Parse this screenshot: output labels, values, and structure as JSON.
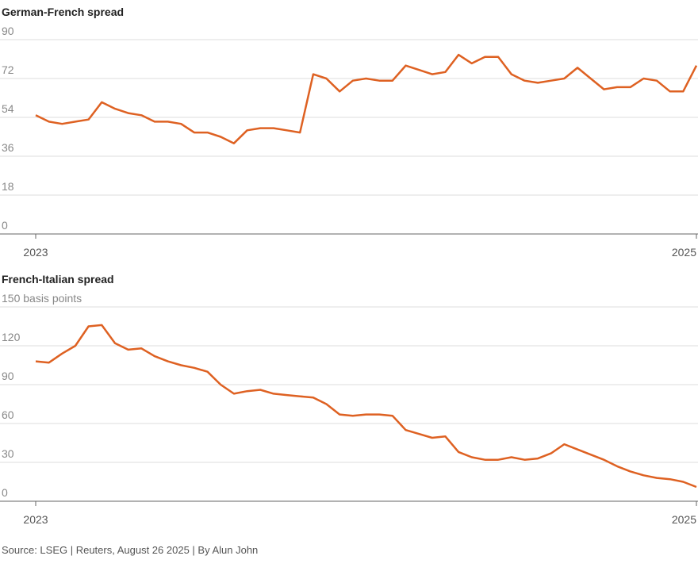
{
  "chart_data": [
    {
      "type": "line",
      "title": "German-French spread",
      "x": [
        2023,
        2023.04,
        2023.08,
        2023.12,
        2023.16,
        2023.2,
        2023.24,
        2023.28,
        2023.32,
        2023.36,
        2023.4,
        2023.44,
        2023.48,
        2023.52,
        2023.56,
        2023.6,
        2023.64,
        2023.68,
        2023.72,
        2023.76,
        2023.8,
        2023.84,
        2023.88,
        2023.92,
        2023.96,
        2024,
        2024.04,
        2024.08,
        2024.12,
        2024.16,
        2024.2,
        2024.24,
        2024.28,
        2024.32,
        2024.36,
        2024.4,
        2024.44,
        2024.48,
        2024.52,
        2024.56,
        2024.6,
        2024.64,
        2024.68,
        2024.72,
        2024.76,
        2024.8,
        2024.84,
        2024.88,
        2024.92,
        2024.96,
        2025
      ],
      "series": [
        {
          "color": "#de6122",
          "values": [
            55,
            52,
            51,
            52,
            53,
            61,
            58,
            56,
            55,
            52,
            52,
            51,
            47,
            47,
            45,
            42,
            48,
            49,
            49,
            48,
            47,
            74,
            72,
            66,
            71,
            72,
            71,
            71,
            78,
            76,
            74,
            75,
            83,
            79,
            82,
            82,
            74,
            71,
            70,
            71,
            72,
            77,
            72,
            67,
            68,
            68,
            72,
            71,
            66,
            66,
            78
          ]
        }
      ],
      "xlim": [
        2023,
        2025
      ],
      "xticks": [
        2023,
        2025
      ],
      "ylim": [
        0,
        90
      ],
      "yticks": [
        0,
        18,
        36,
        54,
        72,
        90
      ],
      "grid": true
    },
    {
      "type": "line",
      "title": "French-Italian spread",
      "x": [
        2023,
        2023.04,
        2023.08,
        2023.12,
        2023.16,
        2023.2,
        2023.24,
        2023.28,
        2023.32,
        2023.36,
        2023.4,
        2023.44,
        2023.48,
        2023.52,
        2023.56,
        2023.6,
        2023.64,
        2023.68,
        2023.72,
        2023.76,
        2023.8,
        2023.84,
        2023.88,
        2023.92,
        2023.96,
        2024,
        2024.04,
        2024.08,
        2024.12,
        2024.16,
        2024.2,
        2024.24,
        2024.28,
        2024.32,
        2024.36,
        2024.4,
        2024.44,
        2024.48,
        2024.52,
        2024.56,
        2024.6,
        2024.64,
        2024.68,
        2024.72,
        2024.76,
        2024.8,
        2024.84,
        2024.88,
        2024.92,
        2024.96,
        2025
      ],
      "series": [
        {
          "color": "#de6122",
          "values": [
            108,
            107,
            114,
            120,
            135,
            136,
            122,
            117,
            118,
            112,
            108,
            105,
            103,
            100,
            90,
            83,
            85,
            86,
            83,
            82,
            81,
            80,
            75,
            67,
            66,
            67,
            67,
            66,
            55,
            52,
            49,
            50,
            38,
            34,
            32,
            32,
            34,
            32,
            33,
            37,
            44,
            40,
            36,
            32,
            27,
            23,
            20,
            18,
            17,
            15,
            11
          ]
        }
      ],
      "xlim": [
        2023,
        2025
      ],
      "xticks": [
        2023,
        2025
      ],
      "ylim": [
        0,
        150
      ],
      "yticks": [
        0,
        30,
        60,
        90,
        120,
        {
          "value": 150,
          "label": "150 basis points"
        }
      ],
      "grid": true
    }
  ],
  "source": "Source: LSEG | Reuters, August 26 2025 | By Alun John"
}
